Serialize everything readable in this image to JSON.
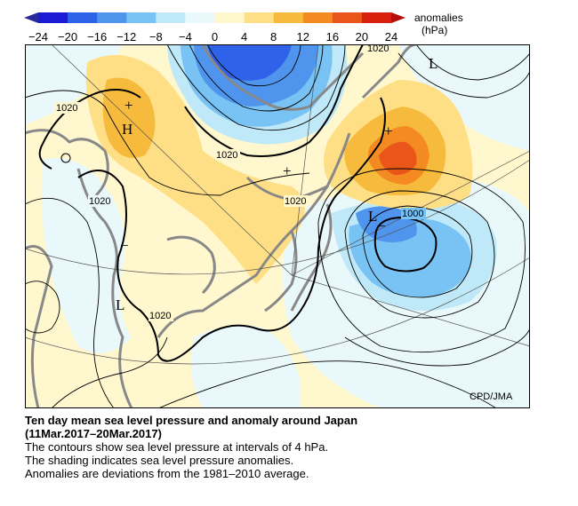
{
  "legend": {
    "title_line1": "anomalies",
    "title_line2": "(hPa)",
    "ticks": [
      "-24",
      "-20",
      "-16",
      "-12",
      "-8",
      "-4",
      "0",
      "4",
      "8",
      "12",
      "16",
      "20",
      "24"
    ],
    "colors": [
      "#1b1bd6",
      "#2f62e8",
      "#4f95ee",
      "#79c3f4",
      "#bfe9f8",
      "#e9f8fb",
      "#fff8cf",
      "#ffdf86",
      "#f6bb3c",
      "#f38a22",
      "#ea5519",
      "#d9200f"
    ]
  },
  "map": {
    "pressure_labels": [
      "1020",
      "1020",
      "1020",
      "1020",
      "1020",
      "1020",
      "1020",
      "1000"
    ],
    "centers": [
      "H",
      "L",
      "L",
      "L"
    ],
    "anomaly_marks": [
      "+",
      "+",
      "+",
      "−",
      "−"
    ],
    "credit": "CPD/JMA"
  },
  "caption": {
    "title": "Ten day mean sea level pressure and anomaly around Japan",
    "period": "(11Mar.2017–20Mar.2017)",
    "line1": "The contours show sea level pressure at intervals of 4 hPa.",
    "line2": "The shading indicates sea level pressure anomalies.",
    "line3": "Anomalies are deviations from the 1981–2010 average."
  }
}
